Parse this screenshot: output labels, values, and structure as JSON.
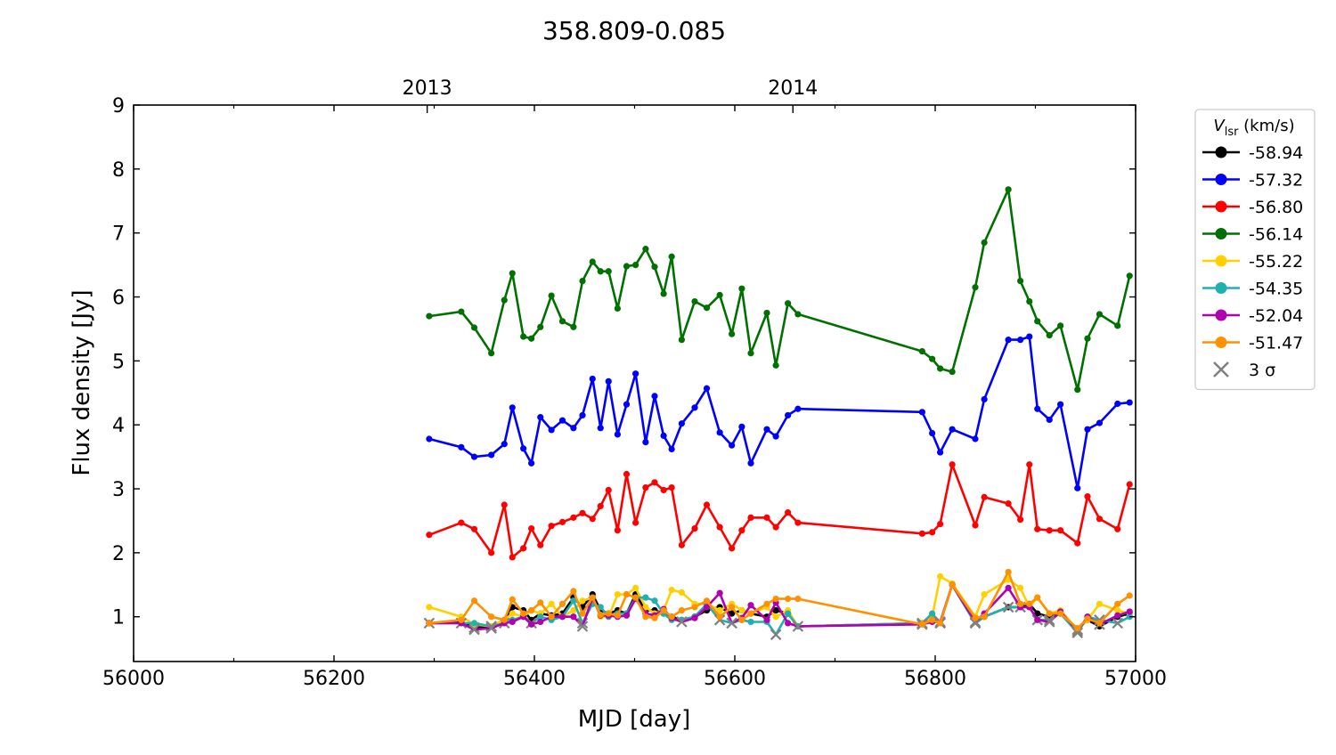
{
  "chart_data": {
    "type": "line",
    "title": "358.809-0.085",
    "xlabel": "MJD [day]",
    "ylabel": "Flux density [Jy]",
    "xlim": [
      56000,
      57000
    ],
    "ylim": [
      0.3,
      9
    ],
    "xticks": [
      56000,
      56200,
      56400,
      56600,
      56800,
      57000
    ],
    "yticks": [
      1,
      2,
      3,
      4,
      5,
      6,
      7,
      8,
      9
    ],
    "top_axis": {
      "ticks": [
        {
          "x": 56293,
          "label": "2013"
        },
        {
          "x": 56658,
          "label": "2014"
        }
      ]
    },
    "grid": false,
    "legend": {
      "placement": "outside-right",
      "title_symbol": "V",
      "title_subscript": "lsr",
      "title_unit": " (km/s)",
      "sigma_label": "3 σ",
      "sigma_color": "#808080"
    },
    "x": [
      56295,
      56327,
      56340,
      56357,
      56370,
      56378,
      56389,
      56397,
      56406,
      56417,
      56428,
      56439,
      56448,
      56458,
      56466,
      56474,
      56483,
      56492,
      56501,
      56511,
      56520,
      56529,
      56537,
      56547,
      56560,
      56572,
      56585,
      56597,
      56607,
      56616,
      56632,
      56641,
      56653,
      56663,
      56787,
      56797,
      56805,
      56817,
      56840,
      56849,
      56873,
      56885,
      56894,
      56902,
      56914,
      56925,
      56942,
      56952,
      56964,
      56982,
      56994
    ],
    "series": [
      {
        "name": "-58.94",
        "color": "#000000",
        "values": [
          0.9,
          0.92,
          0.83,
          0.85,
          0.95,
          1.15,
          1.1,
          0.95,
          1.05,
          1.02,
          1.05,
          1.3,
          1.15,
          1.35,
          1.1,
          1.05,
          1.1,
          1.05,
          1.35,
          1.1,
          1.1,
          1.05,
          1.0,
          0.95,
          1.0,
          1.1,
          1.15,
          1.05,
          1.1,
          1.05,
          1.0,
          1.1,
          1.05,
          0.85,
          0.9,
          1.0,
          0.9,
          1.5,
          0.9,
          1.0,
          1.15,
          1.15,
          1.2,
          1.05,
          1.0,
          1.05,
          0.8,
          0.95,
          0.85,
          1.0,
          1.05
        ],
        "sigma": [
          0,
          0,
          1,
          1,
          0,
          0,
          0,
          0,
          0,
          0,
          0,
          0,
          0,
          0,
          0,
          0,
          0,
          0,
          0,
          0,
          0,
          0,
          0,
          0,
          0,
          0,
          0,
          0,
          0,
          0,
          0,
          0,
          0,
          0,
          0,
          0,
          1,
          0,
          1,
          0,
          0,
          0,
          0,
          0,
          0,
          0,
          1,
          0,
          0,
          0,
          0
        ]
      },
      {
        "name": "-57.32",
        "color": "#0000ff",
        "values": [
          3.78,
          3.65,
          3.5,
          3.53,
          3.7,
          4.27,
          3.63,
          3.4,
          4.12,
          3.92,
          4.07,
          3.95,
          4.15,
          4.72,
          3.95,
          4.68,
          3.85,
          4.32,
          4.8,
          3.73,
          4.45,
          3.83,
          3.62,
          4.02,
          4.27,
          4.57,
          3.88,
          3.68,
          3.97,
          3.4,
          3.93,
          3.82,
          4.15,
          4.25,
          4.2,
          3.87,
          3.57,
          3.93,
          3.78,
          4.4,
          5.33,
          5.33,
          5.38,
          4.25,
          4.08,
          4.32,
          3.01,
          3.93,
          4.03,
          4.33,
          4.35
        ],
        "sigma": []
      },
      {
        "name": "-56.80",
        "color": "#ff0000",
        "values": [
          2.28,
          2.47,
          2.37,
          2.0,
          2.75,
          1.93,
          2.07,
          2.38,
          2.12,
          2.42,
          2.48,
          2.55,
          2.62,
          2.53,
          2.73,
          2.98,
          2.35,
          3.23,
          2.47,
          3.02,
          3.1,
          2.98,
          3.02,
          2.12,
          2.38,
          2.75,
          2.4,
          2.07,
          2.35,
          2.55,
          2.55,
          2.4,
          2.63,
          2.47,
          2.3,
          2.32,
          2.45,
          3.38,
          2.43,
          2.87,
          2.77,
          2.52,
          3.38,
          2.37,
          2.35,
          2.35,
          2.15,
          2.88,
          2.53,
          2.37,
          3.07
        ],
        "sigma": []
      },
      {
        "name": "-56.14",
        "color": "#007000",
        "values": [
          5.7,
          5.77,
          5.52,
          5.12,
          5.95,
          6.37,
          5.38,
          5.35,
          5.53,
          6.02,
          5.62,
          5.53,
          6.25,
          6.55,
          6.4,
          6.4,
          5.82,
          6.48,
          6.5,
          6.75,
          6.47,
          6.05,
          6.63,
          5.33,
          5.93,
          5.83,
          6.03,
          5.42,
          6.13,
          5.12,
          5.75,
          4.93,
          5.9,
          5.73,
          5.15,
          5.03,
          4.88,
          4.83,
          6.15,
          6.85,
          7.68,
          6.25,
          5.93,
          5.62,
          5.4,
          5.55,
          4.55,
          5.35,
          5.73,
          5.55,
          6.33
        ],
        "sigma": []
      },
      {
        "name": "-55.22",
        "color": "#ffd000",
        "values": [
          1.15,
          1.0,
          0.88,
          0.85,
          0.95,
          1.05,
          1.0,
          1.1,
          1.05,
          1.2,
          1.0,
          1.1,
          1.25,
          1.3,
          1.0,
          1.0,
          1.35,
          1.35,
          1.45,
          1.15,
          1.05,
          1.1,
          1.42,
          1.38,
          1.2,
          1.2,
          1.1,
          1.2,
          1.1,
          1.05,
          1.15,
          1.0,
          1.1,
          0.85,
          0.9,
          1.0,
          1.63,
          1.52,
          1.0,
          1.35,
          1.58,
          1.45,
          1.15,
          1.3,
          1.05,
          1.1,
          0.8,
          0.95,
          1.2,
          1.1,
          1.05
        ],
        "sigma": []
      },
      {
        "name": "-54.35",
        "color": "#20b0b0",
        "values": [
          0.9,
          0.9,
          0.9,
          0.85,
          0.9,
          0.95,
          1.0,
          0.9,
          1.0,
          0.95,
          1.0,
          1.25,
          0.9,
          1.2,
          1.15,
          1.0,
          1.05,
          1.05,
          1.3,
          1.3,
          1.25,
          1.05,
          0.95,
          0.95,
          1.0,
          1.2,
          0.95,
          0.9,
          0.95,
          0.92,
          0.92,
          0.72,
          1.05,
          0.85,
          0.9,
          1.05,
          0.9,
          1.5,
          0.9,
          1.0,
          1.15,
          1.15,
          1.15,
          0.95,
          0.95,
          1.05,
          0.75,
          1.0,
          0.95,
          0.9,
          1.0
        ],
        "sigma": [
          1,
          1,
          0,
          1,
          1,
          0,
          0,
          1,
          0,
          0,
          0,
          0,
          1,
          0,
          0,
          0,
          0,
          0,
          0,
          0,
          0,
          0,
          0,
          0,
          0,
          0,
          1,
          1,
          0,
          0,
          0,
          1,
          0,
          0,
          1,
          0,
          1,
          0,
          1,
          0,
          1,
          1,
          0,
          1,
          1,
          0,
          1,
          0,
          1,
          1,
          0
        ]
      },
      {
        "name": "-52.04",
        "color": "#b000b0",
        "values": [
          0.9,
          0.9,
          0.8,
          0.82,
          0.9,
          0.92,
          1.0,
          0.88,
          0.92,
          1.0,
          1.0,
          1.0,
          0.85,
          1.3,
          1.02,
          1.02,
          1.0,
          1.02,
          1.28,
          1.05,
          1.02,
          1.12,
          0.98,
          0.92,
          0.98,
          1.15,
          1.37,
          0.9,
          0.98,
          1.18,
          0.95,
          1.22,
          0.9,
          0.85,
          0.88,
          0.92,
          0.92,
          1.5,
          0.92,
          1.05,
          1.45,
          1.15,
          1.15,
          0.95,
          0.92,
          1.08,
          0.78,
          1.0,
          0.88,
          1.02,
          1.08
        ],
        "sigma": [
          0,
          0,
          1,
          1,
          0,
          0,
          0,
          0,
          0,
          0,
          0,
          0,
          1,
          0,
          0,
          0,
          0,
          0,
          0,
          0,
          0,
          0,
          0,
          1,
          0,
          0,
          0,
          1,
          0,
          0,
          0,
          0,
          0,
          1,
          1,
          0,
          1,
          0,
          1,
          0,
          0,
          0,
          0,
          0,
          1,
          0,
          1,
          0,
          1,
          0,
          0
        ]
      },
      {
        "name": "-51.47",
        "color": "#ff9000",
        "values": [
          0.9,
          0.95,
          1.25,
          1.0,
          0.95,
          1.27,
          1.05,
          1.1,
          1.22,
          1.0,
          1.2,
          1.4,
          1.05,
          1.3,
          1.03,
          1.05,
          1.02,
          1.35,
          1.3,
          1.0,
          0.98,
          1.1,
          1.0,
          1.1,
          1.15,
          1.25,
          1.0,
          1.15,
          0.95,
          1.05,
          1.2,
          1.28,
          1.28,
          1.28,
          0.88,
          0.95,
          0.9,
          1.5,
          0.98,
          1.0,
          1.7,
          1.2,
          1.2,
          1.3,
          1.05,
          1.05,
          0.82,
          0.97,
          0.9,
          1.2,
          1.33
        ],
        "sigma": []
      }
    ]
  }
}
